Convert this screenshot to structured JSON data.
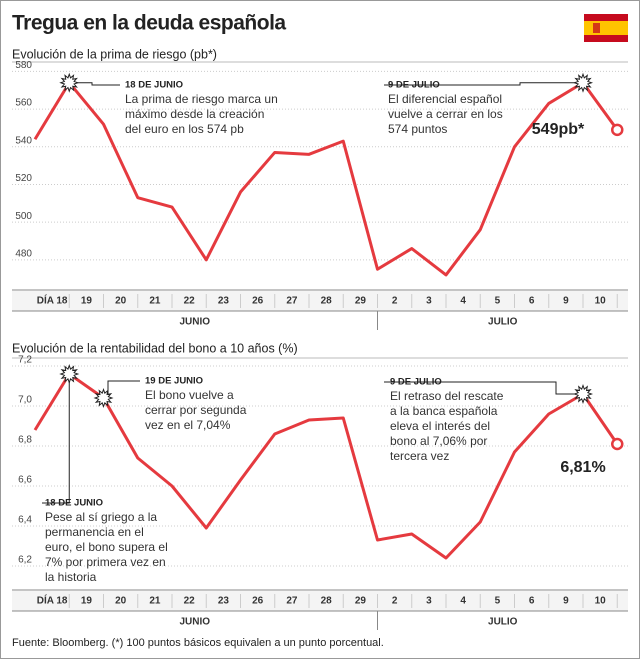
{
  "title": "Tregua en la deuda española",
  "source": "Fuente: Bloomberg. (*) 100 puntos básicos equivalen a un punto porcentual.",
  "chart_data": [
    {
      "type": "line",
      "subtitle": "Evolución de la prima de riesgo (pb*)",
      "categories": [
        "DÍA 18",
        "19",
        "20",
        "21",
        "22",
        "23",
        "26",
        "27",
        "28",
        "29",
        "2",
        "3",
        "4",
        "5",
        "6",
        "9",
        "10",
        null
      ],
      "months": [
        "JUNIO",
        "JULIO"
      ],
      "color": "#e53a3f",
      "values": [
        544,
        574,
        552,
        513,
        508,
        480,
        516,
        537,
        536,
        543,
        475,
        486,
        472,
        496,
        540,
        563,
        574,
        549
      ],
      "ylim": [
        464,
        585
      ],
      "yticks": [
        480,
        500,
        520,
        540,
        560,
        580
      ],
      "end_label": "549pb*",
      "annotations": [
        {
          "heading": "18 DE JUNIO",
          "lines": [
            "La prima de riesgo marca un",
            "máximo desde la creación",
            "del euro en los 574 pb"
          ]
        },
        {
          "heading": "9 DE JULIO",
          "lines": [
            "El diferencial español",
            "vuelve a cerrar en los",
            "574 puntos"
          ]
        }
      ]
    },
    {
      "type": "line",
      "subtitle": "Evolución de la rentabilidad del bono a 10 años (%)",
      "categories": [
        "DÍA 18",
        "19",
        "20",
        "21",
        "22",
        "23",
        "26",
        "27",
        "28",
        "29",
        "2",
        "3",
        "4",
        "5",
        "6",
        "9",
        "10",
        null
      ],
      "months": [
        "JUNIO",
        "JULIO"
      ],
      "color": "#e53a3f",
      "values": [
        6.88,
        7.16,
        7.04,
        6.74,
        6.6,
        6.39,
        6.63,
        6.86,
        6.93,
        6.94,
        6.33,
        6.36,
        6.24,
        6.42,
        6.77,
        6.96,
        7.06,
        6.81
      ],
      "ylim": [
        6.08,
        7.24
      ],
      "yticks": [
        {
          "value": 6.2,
          "label": "6,2"
        },
        {
          "value": 6.4,
          "label": "6,4"
        },
        {
          "value": 6.6,
          "label": "6,6"
        },
        {
          "value": 6.8,
          "label": "6,8"
        },
        {
          "value": 7.0,
          "label": "7,0"
        },
        {
          "value": 7.2,
          "label": "7,2"
        }
      ],
      "end_label": "6,81%",
      "annotations": [
        {
          "heading": "19 DE JUNIO",
          "lines": [
            "El bono vuelve a",
            "cerrar por segunda",
            "vez en el 7,04%"
          ]
        },
        {
          "heading": "18 DE JUNIO",
          "lines": [
            "Pese al sí griego a la",
            "permanencia en el",
            "euro, el bono supera el",
            "7% por primera vez en",
            "la historia"
          ]
        },
        {
          "heading": "9 DE JULIO",
          "lines": [
            "El retraso del rescate",
            "a la banca española",
            "eleva el interés del",
            "bono al 7,06% por",
            "tercera vez"
          ]
        }
      ]
    }
  ]
}
